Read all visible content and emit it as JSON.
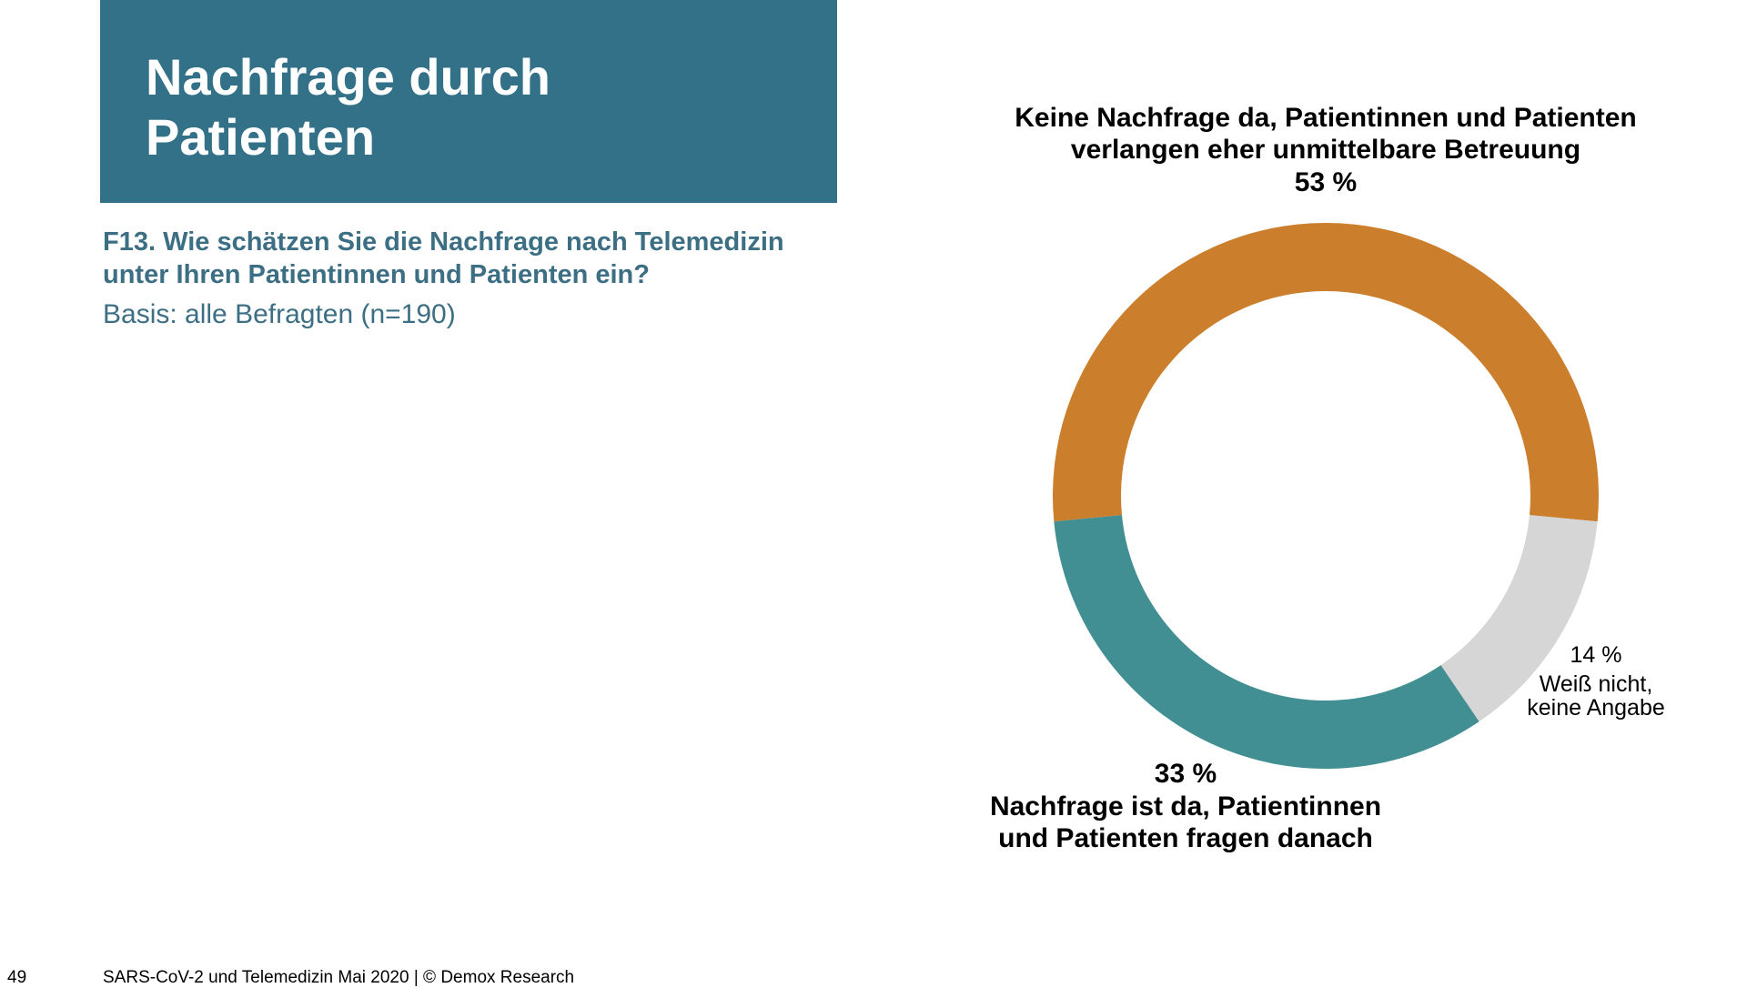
{
  "slide": {
    "title_line1": "Nachfrage durch",
    "title_line2": "Patienten",
    "question_line1": "F13. Wie schätzen Sie die Nachfrage nach Telemedizin",
    "question_line2": "unter Ihren Patientinnen und Patienten ein?",
    "basis": "Basis: alle Befragten (n=190)",
    "page_number": "49",
    "footer": "SARS-CoV-2 und Telemedizin Mai 2020 | © Demox Research"
  },
  "colors": {
    "title_background": "#327187",
    "question_text": "#3d6f84",
    "slice_keine_nachfrage": "#cb7e2b",
    "slice_weiss_nicht": "#d6d6d6",
    "slice_nachfrage_da": "#418f92"
  },
  "chart_data": {
    "type": "pie",
    "variant": "donut",
    "title": "",
    "slices": [
      {
        "label_lines": [
          "Keine Nachfrage da, Patientinnen und Patienten",
          "verlangen eher unmittelbare Betreuung"
        ],
        "value": 53,
        "value_label": "53 %",
        "color": "#cb7e2b"
      },
      {
        "label_lines": [
          "Weiß nicht,",
          "keine Angabe"
        ],
        "value": 14,
        "value_label": "14 %",
        "color": "#d6d6d6"
      },
      {
        "label_lines": [
          "Nachfrage ist da, Patientinnen",
          "und Patienten fragen danach"
        ],
        "value": 33,
        "value_label": "33 %",
        "color": "#418f92"
      }
    ]
  }
}
